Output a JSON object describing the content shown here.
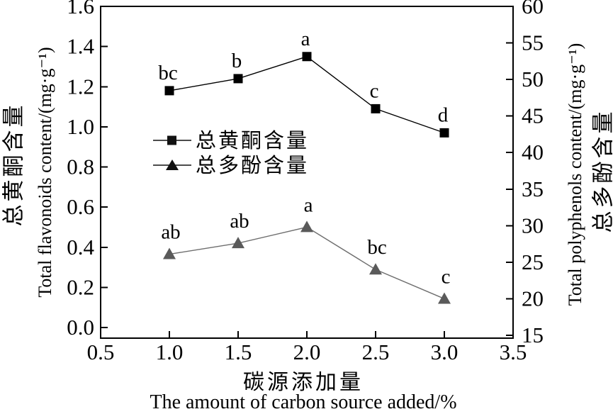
{
  "colors": {
    "axis": "#000000",
    "flavonoids_series": "#000000",
    "polyphenols_marker": "#5a5a5a",
    "polyphenols_line": "#6e6e6e",
    "legend_marker": "#111111",
    "background": "#ffffff"
  },
  "chart_data": {
    "type": "line",
    "x": [
      1.0,
      1.5,
      2.0,
      2.5,
      3.0
    ],
    "x_axis": {
      "title_zh": "碳源添加量",
      "title_en": "The amount of carbon source added/%",
      "min": 0.5,
      "max": 3.5,
      "tick_labels": [
        "0.5",
        "1.0",
        "1.5",
        "2.0",
        "2.5",
        "3.0",
        "3.5"
      ]
    },
    "left_axis": {
      "title_zh": "总黄酮含量",
      "title_en": "Total flavonoids content/(mg·g⁻¹)",
      "min": 0.0,
      "max": 1.6,
      "tick_labels": [
        "1.6",
        "1.4",
        "1.2",
        "1.0",
        "0.8",
        "0.6",
        "0.4",
        "0.2",
        "0.0"
      ]
    },
    "right_axis": {
      "title_en": "Total polyphenols content/(mg·g⁻¹)",
      "title_zh": "总多酚含量",
      "min": 15,
      "max": 60,
      "tick_labels": [
        "60",
        "55",
        "50",
        "45",
        "40",
        "35",
        "30",
        "25",
        "20",
        "15"
      ]
    },
    "series": [
      {
        "name": "总黄酮含量",
        "axis": "left",
        "marker": "square",
        "values": [
          1.18,
          1.24,
          1.35,
          1.09,
          0.97
        ],
        "point_labels": [
          "bc",
          "b",
          "a",
          "c",
          "d"
        ]
      },
      {
        "name": "总多酚含量",
        "axis": "right",
        "marker": "triangle",
        "values": [
          26.1,
          27.6,
          29.8,
          24.0,
          20.0
        ],
        "point_labels": [
          "ab",
          "ab",
          "a",
          "bc",
          "c"
        ]
      }
    ],
    "legend_position": "inside-center-left",
    "grid": false
  }
}
